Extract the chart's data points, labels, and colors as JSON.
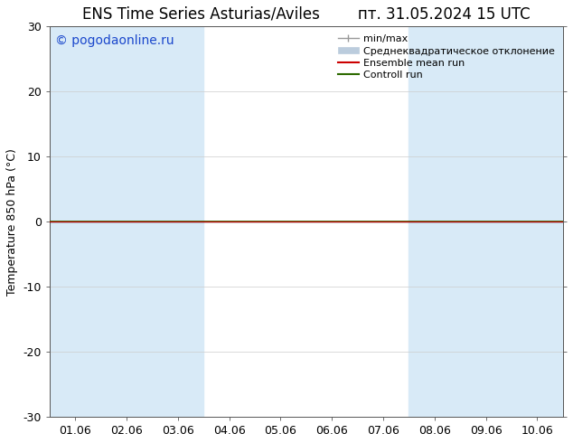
{
  "title": "ENS Time Series Asturias/Aviles",
  "title_right": "пт. 31.05.2024 15 UTC",
  "ylabel": "Temperature 850 hPa (°C)",
  "ylim": [
    -30,
    30
  ],
  "yticks": [
    -30,
    -20,
    -10,
    0,
    10,
    20,
    30
  ],
  "xtick_labels": [
    "01.06",
    "02.06",
    "03.06",
    "04.06",
    "05.06",
    "06.06",
    "07.06",
    "08.06",
    "09.06",
    "10.06"
  ],
  "n_xticks": 10,
  "watermark": "© pogodaonline.ru",
  "watermark_color": "#1a47cc",
  "bg_color": "#ffffff",
  "plot_bg_color": "#ffffff",
  "band_color": "#d8eaf7",
  "shaded_x_indices": [
    0,
    1,
    2,
    7,
    8,
    9
  ],
  "control_run_color": "#2d6a00",
  "ensemble_mean_color": "#cc0000",
  "min_max_color": "#999999",
  "std_dev_color": "#bbccdd",
  "legend_labels": [
    "min/max",
    "Среднеквадратическое отклонение",
    "Ensemble mean run",
    "Controll run"
  ],
  "font_size_title": 12,
  "font_size_tick": 9,
  "font_size_legend": 8,
  "font_size_ylabel": 9,
  "font_size_watermark": 10,
  "grid_color": "#cccccc",
  "spine_color": "#555555",
  "zero_line_color": "#000000"
}
